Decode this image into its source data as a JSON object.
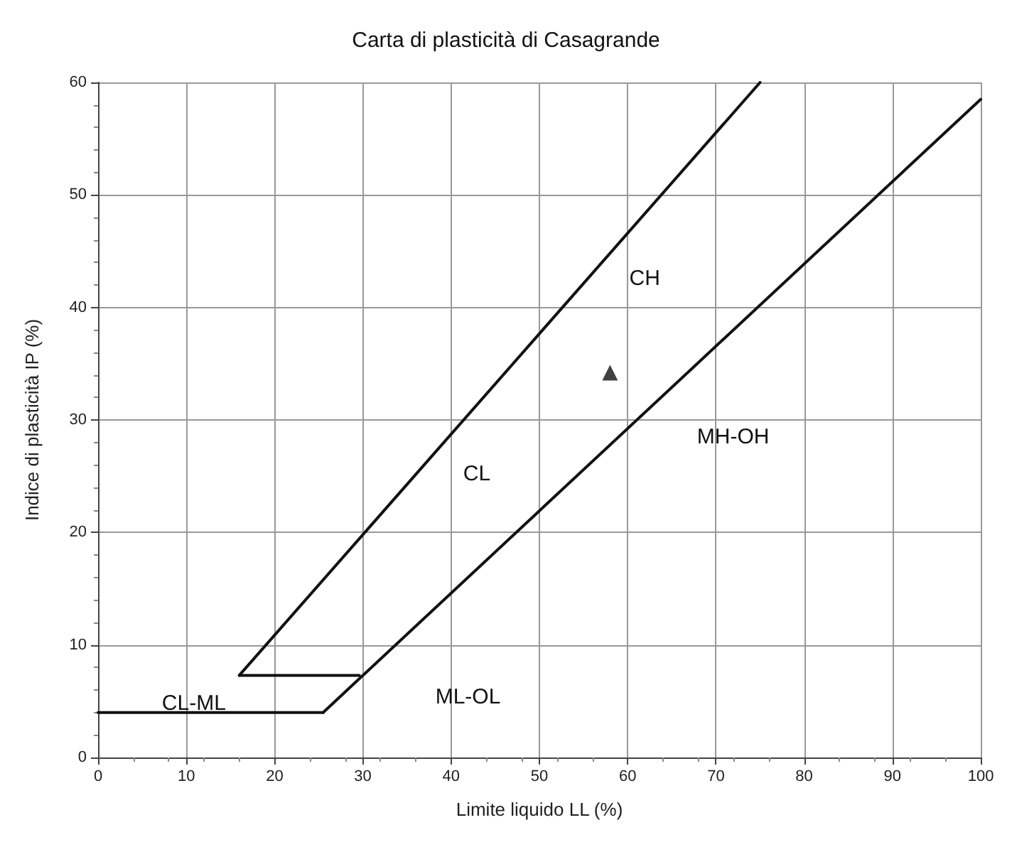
{
  "chart_data": {
    "type": "line",
    "title": "Carta di plasticità di Casagrande",
    "xlabel": "Limite liquido LL (%)",
    "ylabel": "Indice di plasticità IP (%)",
    "xlim": [
      0,
      100
    ],
    "xticks": [
      0,
      10,
      20,
      30,
      40,
      50,
      60,
      70,
      80,
      90,
      100
    ],
    "ylim": [
      0,
      60
    ],
    "yticks": [
      0,
      10,
      20,
      30,
      40,
      50,
      60
    ],
    "grid": true,
    "marker": "none",
    "line_style": "solid",
    "series": [
      {
        "color": "#111111",
        "x": [
          16,
          75
        ],
        "values": [
          7.3,
          60
        ]
      },
      {
        "color": "#111111",
        "x": [
          25.5,
          100
        ],
        "values": [
          4,
          58.5
        ]
      },
      {
        "color": "#111111",
        "x": [
          16,
          29.6
        ],
        "values": [
          7.3,
          7.3
        ]
      },
      {
        "color": "#111111",
        "x": [
          0,
          25.5
        ],
        "values": [
          4,
          4
        ]
      },
      {
        "type": "scatter",
        "marker": "triangle",
        "color": "#111111",
        "x": [
          58
        ],
        "values": [
          34.2
        ]
      }
    ],
    "annotations": [
      "CH",
      "CL",
      "MH-OH",
      "ML-OL",
      "CL-ML"
    ]
  }
}
